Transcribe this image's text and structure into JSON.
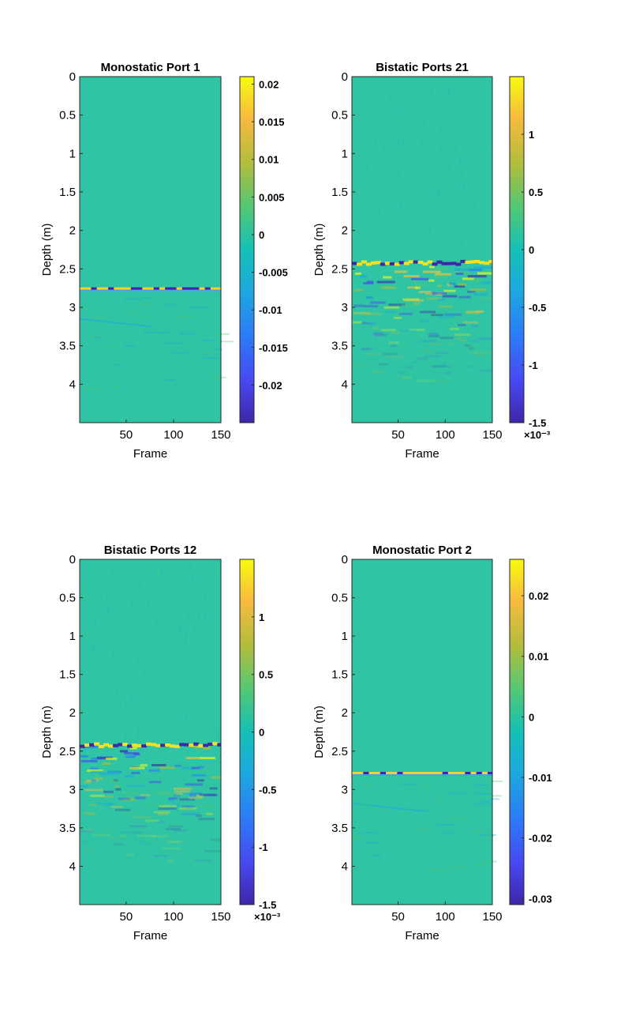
{
  "chart_data": [
    {
      "type": "heatmap",
      "title": "Monostatic Port 1",
      "xlabel": "Frame",
      "ylabel": "Depth (m)",
      "xlim": [
        1,
        150
      ],
      "ylim": [
        0,
        4.5
      ],
      "x_ticks": [
        "50",
        "100",
        "150"
      ],
      "y_ticks": [
        "0",
        "0.5",
        "1",
        "1.5",
        "2",
        "2.5",
        "3",
        "3.5",
        "4"
      ],
      "colorbar": {
        "min": -0.025,
        "max": 0.021,
        "ticks": [
          "0.02",
          "0.015",
          "0.01",
          "0.005",
          "0",
          "-0.005",
          "-0.01",
          "-0.015",
          "-0.02"
        ],
        "exponent_label": ""
      },
      "colormap": "parula",
      "reflector_depth": 2.75
    },
    {
      "type": "heatmap",
      "title": "Bistatic Ports 21",
      "xlabel": "Frame",
      "ylabel": "Depth (m)",
      "xlim": [
        1,
        150
      ],
      "ylim": [
        0,
        4.5
      ],
      "x_ticks": [
        "50",
        "100",
        "150"
      ],
      "y_ticks": [
        "0",
        "0.5",
        "1",
        "1.5",
        "2",
        "2.5",
        "3",
        "3.5",
        "4"
      ],
      "colorbar": {
        "min": -1.5,
        "max": 1.5,
        "ticks": [
          "1",
          "0.5",
          "0",
          "-0.5",
          "-1",
          "-1.5"
        ],
        "exponent_label": "×10⁻³"
      },
      "colormap": "parula",
      "reflector_depth": 2.4
    },
    {
      "type": "heatmap",
      "title": "Bistatic Ports 12",
      "xlabel": "Frame",
      "ylabel": "Depth (m)",
      "xlim": [
        1,
        150
      ],
      "ylim": [
        0,
        4.5
      ],
      "x_ticks": [
        "50",
        "100",
        "150"
      ],
      "y_ticks": [
        "0",
        "0.5",
        "1",
        "1.5",
        "2",
        "2.5",
        "3",
        "3.5",
        "4"
      ],
      "colorbar": {
        "min": -1.5,
        "max": 1.5,
        "ticks": [
          "1",
          "0.5",
          "0",
          "-0.5",
          "-1",
          "-1.5"
        ],
        "exponent_label": "×10⁻³"
      },
      "colormap": "parula",
      "reflector_depth": 2.4
    },
    {
      "type": "heatmap",
      "title": "Monostatic Port 2",
      "xlabel": "Frame",
      "ylabel": "Depth (m)",
      "xlim": [
        1,
        150
      ],
      "ylim": [
        0,
        4.5
      ],
      "x_ticks": [
        "50",
        "100",
        "150"
      ],
      "y_ticks": [
        "0",
        "0.5",
        "1",
        "1.5",
        "2",
        "2.5",
        "3",
        "3.5",
        "4"
      ],
      "colorbar": {
        "min": -0.031,
        "max": 0.026,
        "ticks": [
          "0.02",
          "0.01",
          "0",
          "-0.01",
          "-0.02",
          "-0.03"
        ],
        "exponent_label": ""
      },
      "colormap": "parula",
      "reflector_depth": 2.78
    }
  ]
}
